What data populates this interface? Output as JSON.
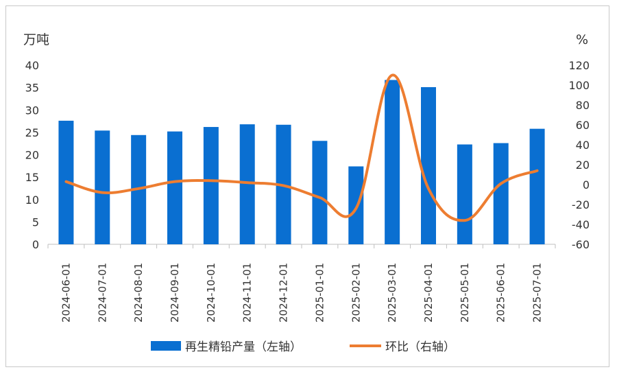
{
  "chart_data": {
    "type": "bar",
    "left_unit": "万吨",
    "right_unit": "%",
    "categories": [
      "2024-06-01",
      "2024-07-01",
      "2024-08-01",
      "2024-09-01",
      "2024-10-01",
      "2024-11-01",
      "2024-12-01",
      "2025-01-01",
      "2025-02-01",
      "2025-03-01",
      "2025-04-01",
      "2025-05-01",
      "2025-06-01",
      "2025-07-01"
    ],
    "series": [
      {
        "name": "再生精铅产量（左轴）",
        "type": "bar",
        "axis": "left",
        "color": "#0a6fd1",
        "values": [
          27.6,
          25.4,
          24.4,
          25.2,
          26.2,
          26.8,
          26.7,
          23.1,
          17.4,
          36.7,
          35.1,
          22.3,
          22.6,
          25.8
        ]
      },
      {
        "name": "环比（右轴）",
        "type": "line",
        "axis": "right",
        "color": "#ed7d31",
        "values": [
          3,
          -8,
          -4,
          3,
          4,
          2,
          -1,
          -13,
          -24,
          110,
          -4,
          -36,
          1,
          14
        ]
      }
    ],
    "left_axis": {
      "min": 0,
      "max": 40,
      "step": 5,
      "ticks": [
        "0",
        "5",
        "10",
        "15",
        "20",
        "25",
        "30",
        "35",
        "40"
      ]
    },
    "right_axis": {
      "min": -60,
      "max": 120,
      "step": 20,
      "ticks": [
        "-60",
        "-40",
        "-20",
        "0",
        "20",
        "40",
        "60",
        "80",
        "100",
        "120"
      ]
    },
    "grid": false,
    "legend_position": "bottom"
  }
}
